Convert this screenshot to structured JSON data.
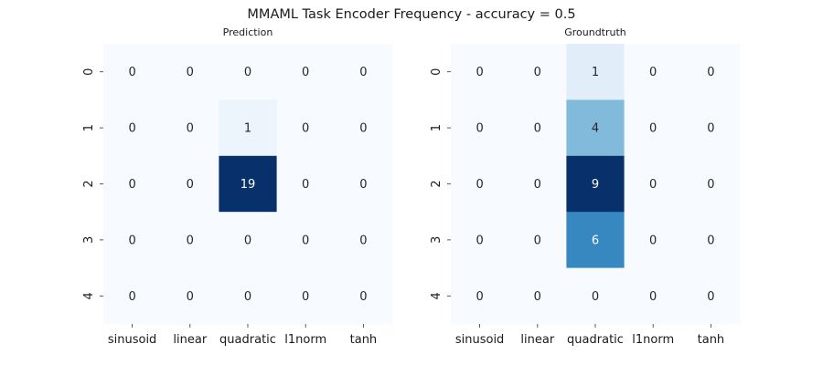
{
  "figure": {
    "title": "MMAML Task Encoder Frequency - accuracy = 0.5"
  },
  "chart_data": [
    {
      "type": "heatmap",
      "title": "Prediction",
      "x_tick_labels": [
        "sinusoid",
        "linear",
        "quadratic",
        "l1norm",
        "tanh"
      ],
      "y_tick_labels": [
        "0",
        "1",
        "2",
        "3",
        "4"
      ],
      "values": [
        [
          0,
          0,
          0,
          0,
          0
        ],
        [
          0,
          0,
          1,
          0,
          0
        ],
        [
          0,
          0,
          19,
          0,
          0
        ],
        [
          0,
          0,
          0,
          0,
          0
        ],
        [
          0,
          0,
          0,
          0,
          0
        ]
      ],
      "colormap": "Blues",
      "annotated": true,
      "colorbar": false
    },
    {
      "type": "heatmap",
      "title": "Groundtruth",
      "x_tick_labels": [
        "sinusoid",
        "linear",
        "quadratic",
        "l1norm",
        "tanh"
      ],
      "y_tick_labels": [
        "0",
        "1",
        "2",
        "3",
        "4"
      ],
      "values": [
        [
          0,
          0,
          1,
          0,
          0
        ],
        [
          0,
          0,
          4,
          0,
          0
        ],
        [
          0,
          0,
          9,
          0,
          0
        ],
        [
          0,
          0,
          6,
          0,
          0
        ],
        [
          0,
          0,
          0,
          0,
          0
        ]
      ],
      "colormap": "Blues",
      "annotated": true,
      "colorbar": false
    }
  ]
}
